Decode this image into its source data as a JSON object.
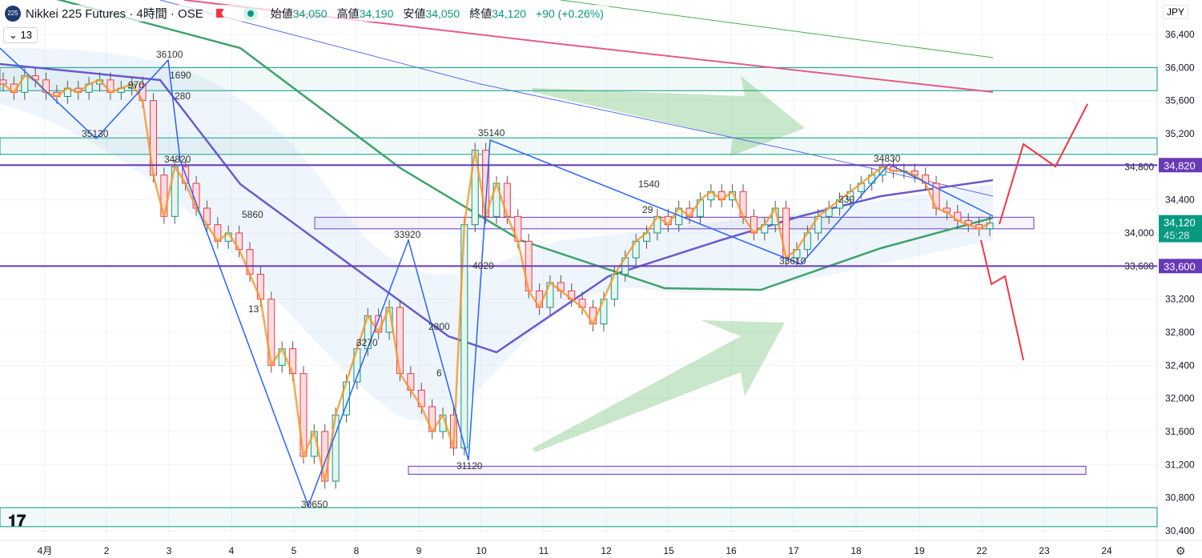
{
  "header": {
    "symbol_badge": "225",
    "title": "Nikkei 225 Futures · 4時間 · OSE",
    "open_label": "始値",
    "open": "34,050",
    "high_label": "高値",
    "high": "34,190",
    "low_label": "安値",
    "low": "34,050",
    "close_label": "終値",
    "close": "34,120",
    "change": "+90 (+0.26%)"
  },
  "indicator_toggle": "13",
  "currency": "JPY",
  "logo": "TV",
  "colors": {
    "up": "#089981",
    "down": "#f23645",
    "purple": "#673ab7",
    "teal": "#089981"
  },
  "chart_data": {
    "type": "candlestick",
    "ylim": [
      30400,
      36500
    ],
    "y_ticks": [
      "36,400",
      "36,000",
      "35,600",
      "35,200",
      "34,800",
      "34,400",
      "34,000",
      "33,600",
      "33,200",
      "32,800",
      "32,400",
      "32,000",
      "31,600",
      "31,200",
      "30,800",
      "30,400"
    ],
    "y_tick_values": [
      36400,
      36000,
      35600,
      35200,
      34800,
      34400,
      34000,
      33600,
      33200,
      32800,
      32400,
      32000,
      31600,
      31200,
      30800,
      30400
    ],
    "x_labels": [
      "4月",
      "2",
      "3",
      "4",
      "5",
      "8",
      "9",
      "10",
      "11",
      "12",
      "15",
      "16",
      "17",
      "18",
      "19",
      "22",
      "23",
      "24"
    ],
    "price_labels": [
      {
        "text": "34,820",
        "value": 34820,
        "color": "#673ab7"
      },
      {
        "text": "33,600",
        "value": 33600,
        "color": "#673ab7"
      },
      {
        "text": "34,120",
        "sub": "45:28",
        "value": 34120,
        "color": "#089981"
      }
    ],
    "closes": [
      35800,
      35700,
      35900,
      35850,
      35700,
      35650,
      35750,
      35700,
      35800,
      35850,
      35700,
      35750,
      35800,
      35600,
      34700,
      34200,
      34800,
      34600,
      34300,
      34100,
      33900,
      34000,
      33800,
      33500,
      33200,
      32400,
      32600,
      32300,
      31300,
      31600,
      31000,
      31800,
      32200,
      32600,
      33000,
      32800,
      33100,
      32300,
      32100,
      31900,
      31600,
      31800,
      31400,
      34100,
      35000,
      34200,
      34600,
      34200,
      33900,
      33300,
      33100,
      33400,
      33300,
      33200,
      33100,
      32900,
      33200,
      33500,
      33700,
      33900,
      34000,
      34200,
      34100,
      34300,
      34200,
      34400,
      34500,
      34400,
      34500,
      34200,
      34000,
      34100,
      34300,
      33700,
      33800,
      34000,
      34200,
      34300,
      34400,
      34500,
      34600,
      34700,
      34800,
      34750,
      34750,
      34700,
      34600,
      34300,
      34250,
      34150,
      34100,
      34050,
      34120
    ],
    "horizontal_levels": [
      34820,
      33600
    ],
    "annotations": [
      "36100",
      "970",
      "1690",
      "280",
      "35130",
      "34820",
      "5860",
      "13",
      "33920",
      "3270",
      "2800",
      "6",
      "30650",
      "31120",
      "35140",
      "4020",
      "1540",
      "29",
      "34830",
      "230",
      "33610"
    ]
  }
}
